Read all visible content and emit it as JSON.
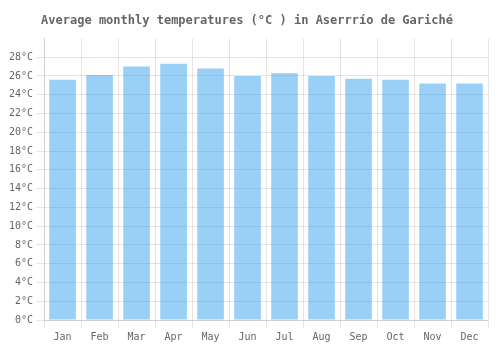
{
  "chart_data": {
    "type": "bar",
    "title": "Average monthly temperatures (°C ) in Aserrrío de Gariché",
    "categories": [
      "Jan",
      "Feb",
      "Mar",
      "Apr",
      "May",
      "Jun",
      "Jul",
      "Aug",
      "Sep",
      "Oct",
      "Nov",
      "Dec"
    ],
    "values": [
      25.6,
      26.1,
      27.0,
      27.3,
      26.8,
      26.0,
      26.3,
      26.0,
      25.7,
      25.6,
      25.2,
      25.2
    ],
    "ylim": [
      0,
      30
    ],
    "yticks": [
      {
        "value": 0,
        "label": "0°C"
      },
      {
        "value": 2,
        "label": "2°C"
      },
      {
        "value": 4,
        "label": "4°C"
      },
      {
        "value": 6,
        "label": "6°C"
      },
      {
        "value": 8,
        "label": "8°C"
      },
      {
        "value": 10,
        "label": "10°C"
      },
      {
        "value": 12,
        "label": "12°C"
      },
      {
        "value": 14,
        "label": "14°C"
      },
      {
        "value": 16,
        "label": "16°C"
      },
      {
        "value": 18,
        "label": "18°C"
      },
      {
        "value": 20,
        "label": "20°C"
      },
      {
        "value": 22,
        "label": "22°C"
      },
      {
        "value": 24,
        "label": "24°C"
      },
      {
        "value": 26,
        "label": "26°C"
      },
      {
        "value": 28,
        "label": "28°C"
      }
    ],
    "grid": true
  }
}
